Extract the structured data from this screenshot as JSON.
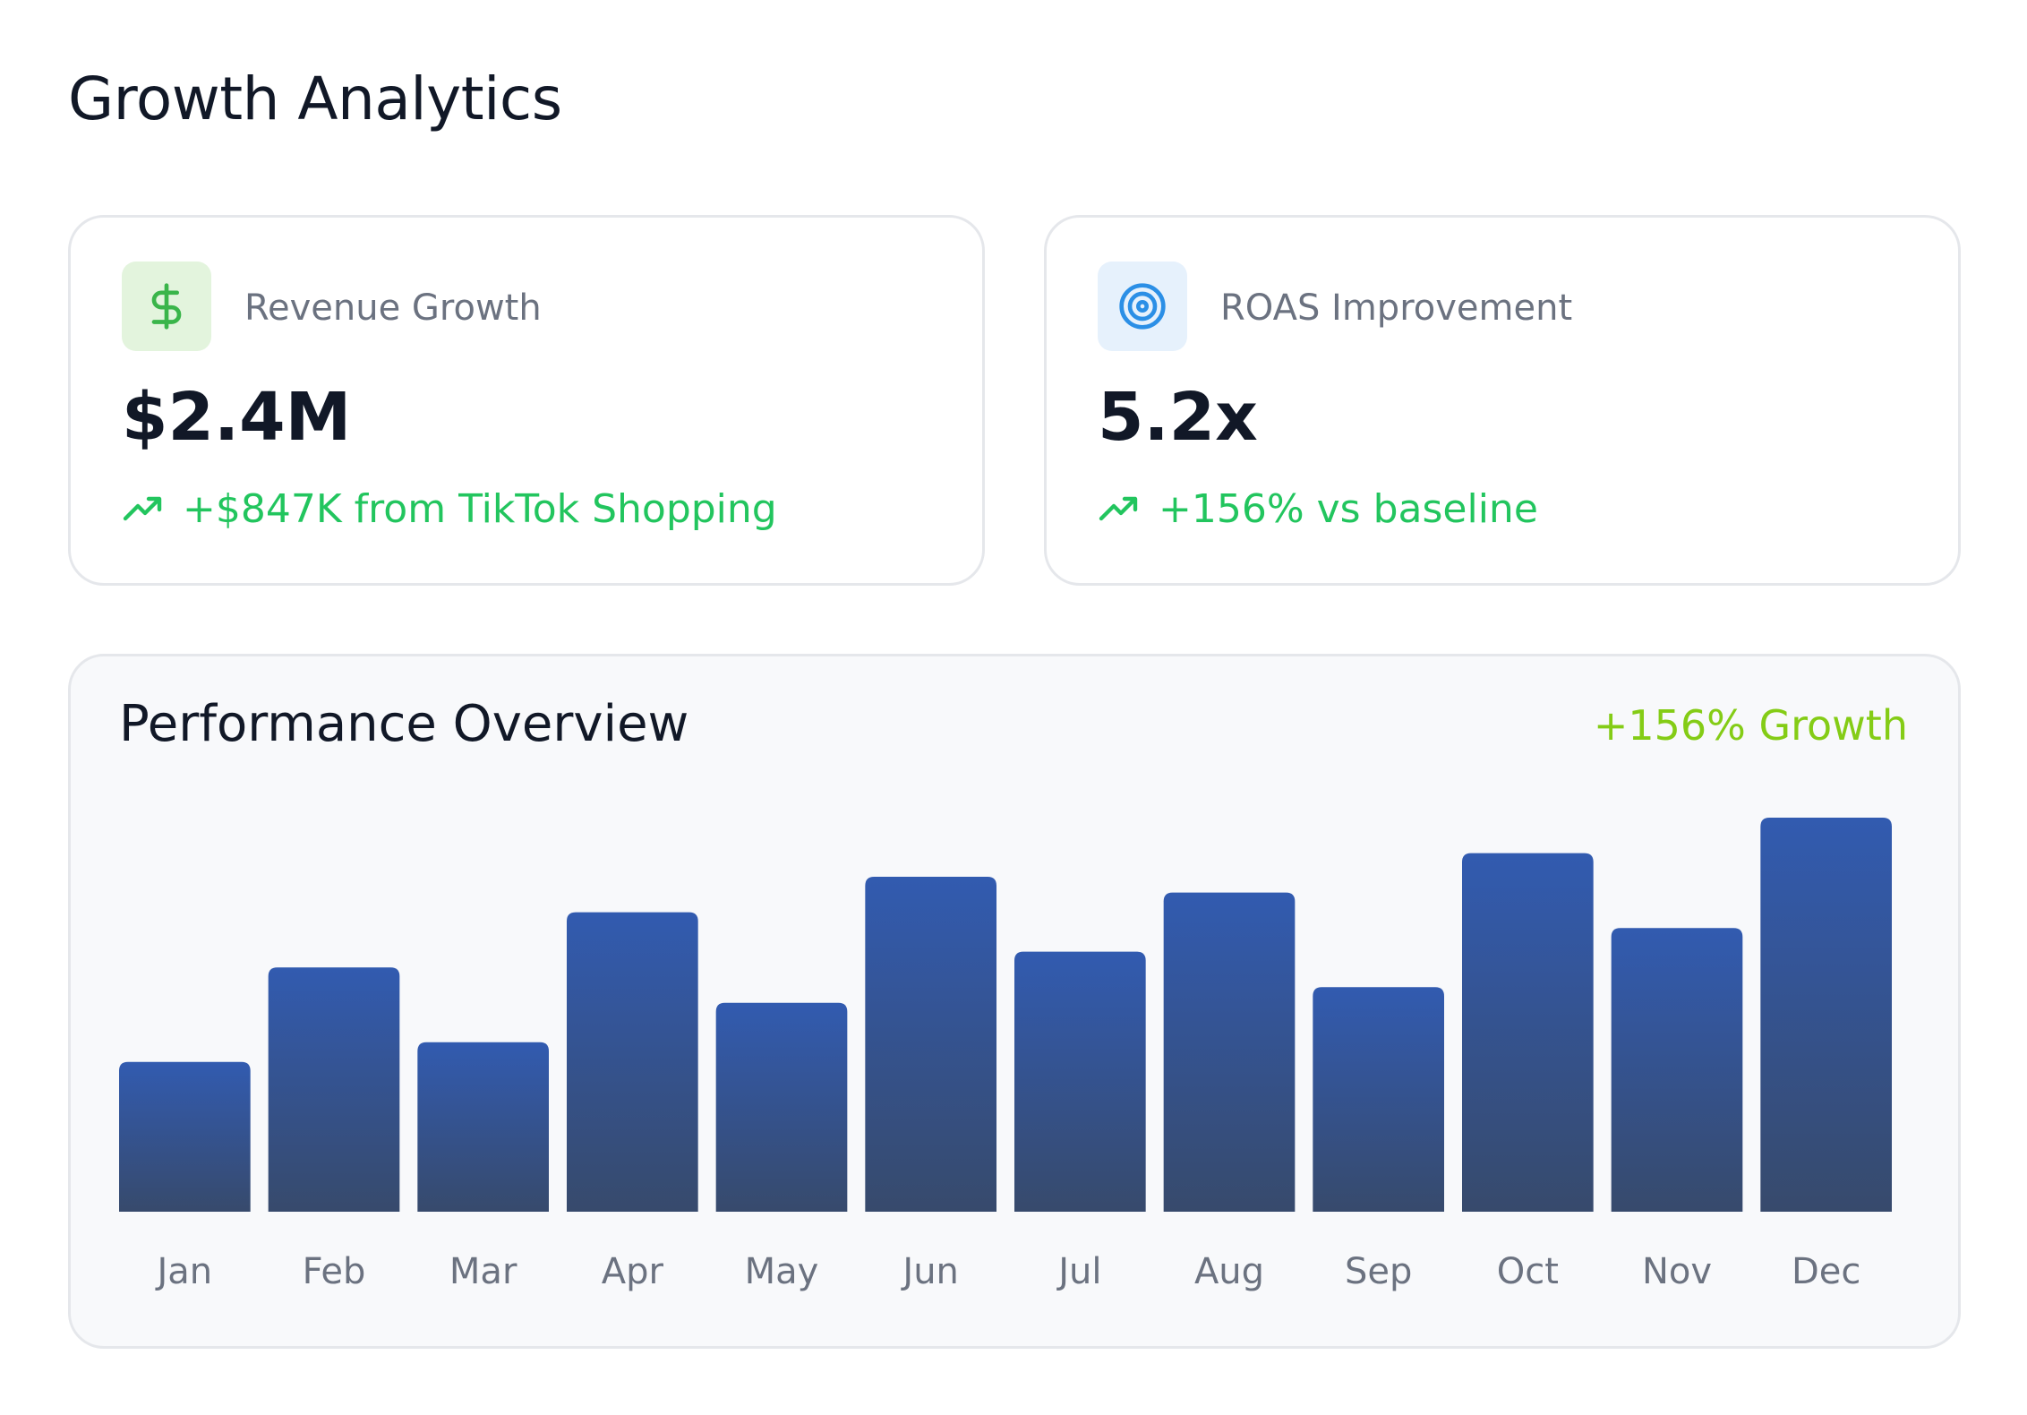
{
  "header": {
    "title": "Growth Analytics"
  },
  "cards": {
    "revenue": {
      "icon": "dollar-icon",
      "label": "Revenue Growth",
      "value": "$2.4M",
      "delta": "+$847K from TikTok Shopping",
      "icon_bg": "#e3f4dd",
      "icon_color": "#3ab54a"
    },
    "roas": {
      "icon": "target-icon",
      "label": "ROAS Improvement",
      "value": "5.2x",
      "delta": "+156% vs baseline",
      "icon_bg": "#e6f1fc",
      "icon_color": "#2b8fe6"
    }
  },
  "colors": {
    "positive": "#22c55e",
    "growth_badge": "#84cc16",
    "bar_top": "#325bb0",
    "bar_bottom": "#374a6c",
    "axis_label": "#6b7280"
  },
  "chart_data": {
    "type": "bar",
    "title": "Performance Overview",
    "badge": "+156% Growth",
    "categories": [
      "Jan",
      "Feb",
      "Mar",
      "Apr",
      "May",
      "Jun",
      "Jul",
      "Aug",
      "Sep",
      "Oct",
      "Nov",
      "Dec"
    ],
    "values": [
      38,
      62,
      43,
      76,
      53,
      85,
      66,
      81,
      57,
      91,
      72,
      100
    ],
    "ylim": [
      0,
      100
    ],
    "grid": false,
    "legend": "none"
  }
}
